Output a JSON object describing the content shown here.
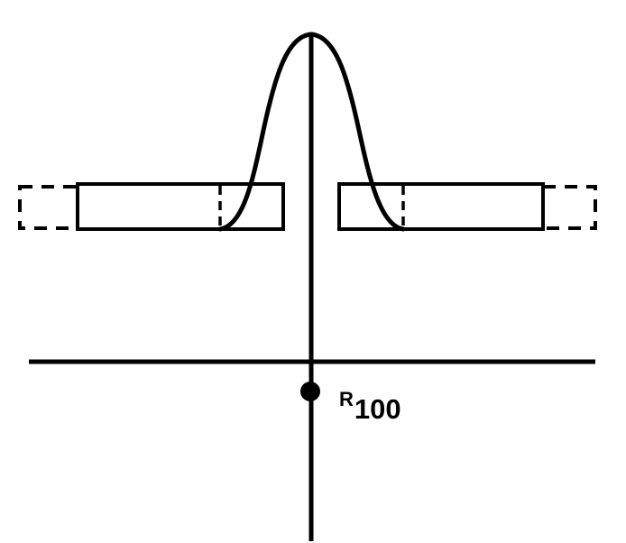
{
  "colors": {
    "stroke": "#000000",
    "background": "#ffffff"
  },
  "labels": {
    "reference_point": {
      "main": "R",
      "subscript": "100"
    }
  }
}
